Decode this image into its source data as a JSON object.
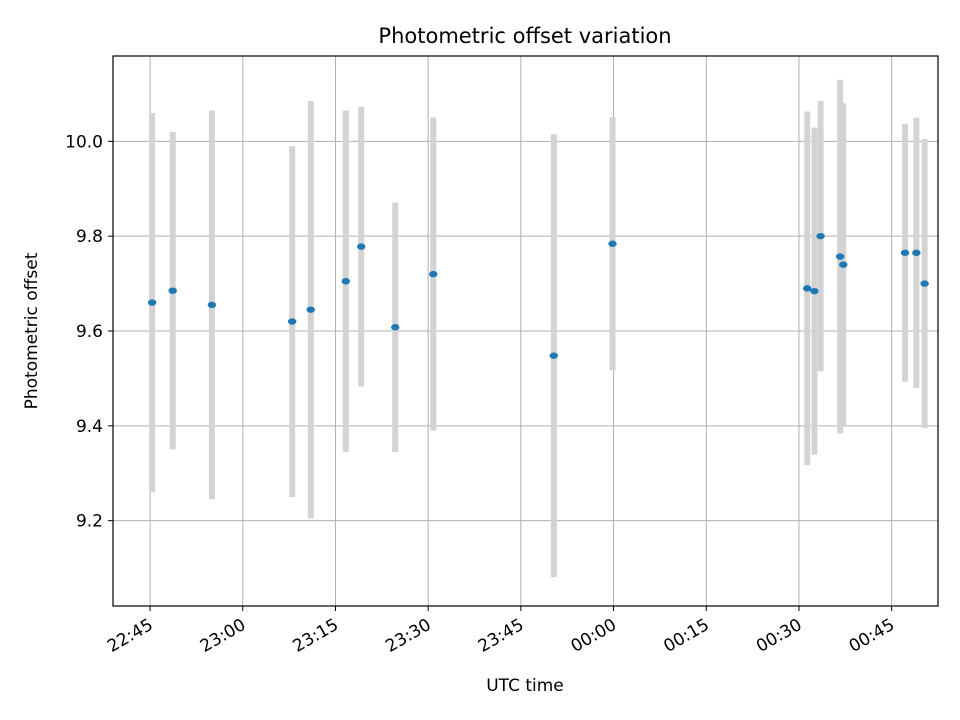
{
  "chart_data": {
    "type": "scatter",
    "title": "Photometric offset variation",
    "xlabel": "UTC time",
    "ylabel": "Photometric offset",
    "x_ticks": [
      "22:45",
      "23:00",
      "23:15",
      "23:30",
      "23:45",
      "00:00",
      "00:15",
      "00:30",
      "00:45"
    ],
    "y_ticks": [
      "9.2",
      "9.4",
      "9.6",
      "9.8",
      "10.0"
    ],
    "xlim": [
      "22:39",
      "00:52:30"
    ],
    "ylim": [
      9.02,
      10.18
    ],
    "grid": true,
    "colors": {
      "point": "#1f77b4",
      "errorbar": "#d3d3d3",
      "grid": "#b0b0b0"
    },
    "points": [
      {
        "time": "22:45:20",
        "y": 9.66,
        "yerr": 0.4
      },
      {
        "time": "22:48:40",
        "y": 9.685,
        "yerr": 0.335
      },
      {
        "time": "22:55:00",
        "y": 9.655,
        "yerr": 0.41
      },
      {
        "time": "23:08:00",
        "y": 9.62,
        "yerr": 0.37
      },
      {
        "time": "23:11:00",
        "y": 9.645,
        "yerr": 0.44
      },
      {
        "time": "23:16:40",
        "y": 9.705,
        "yerr": 0.36
      },
      {
        "time": "23:19:10",
        "y": 9.778,
        "yerr": 0.295
      },
      {
        "time": "23:24:40",
        "y": 9.608,
        "yerr": 0.263
      },
      {
        "time": "23:30:50",
        "y": 9.72,
        "yerr": 0.33
      },
      {
        "time": "23:50:20",
        "y": 9.548,
        "yerr": 0.467
      },
      {
        "time": "23:59:50",
        "y": 9.784,
        "yerr": 0.267
      },
      {
        "time": "00:31:20",
        "y": 9.69,
        "yerr": 0.373
      },
      {
        "time": "00:32:30",
        "y": 9.684,
        "yerr": 0.345
      },
      {
        "time": "00:33:30",
        "y": 9.8,
        "yerr": 0.285
      },
      {
        "time": "00:36:40",
        "y": 9.757,
        "yerr": 0.373
      },
      {
        "time": "00:37:10",
        "y": 9.74,
        "yerr": 0.34
      },
      {
        "time": "00:47:10",
        "y": 9.765,
        "yerr": 0.272
      },
      {
        "time": "00:49:00",
        "y": 9.765,
        "yerr": 0.285
      },
      {
        "time": "00:50:20",
        "y": 9.7,
        "yerr": 0.305
      }
    ]
  }
}
